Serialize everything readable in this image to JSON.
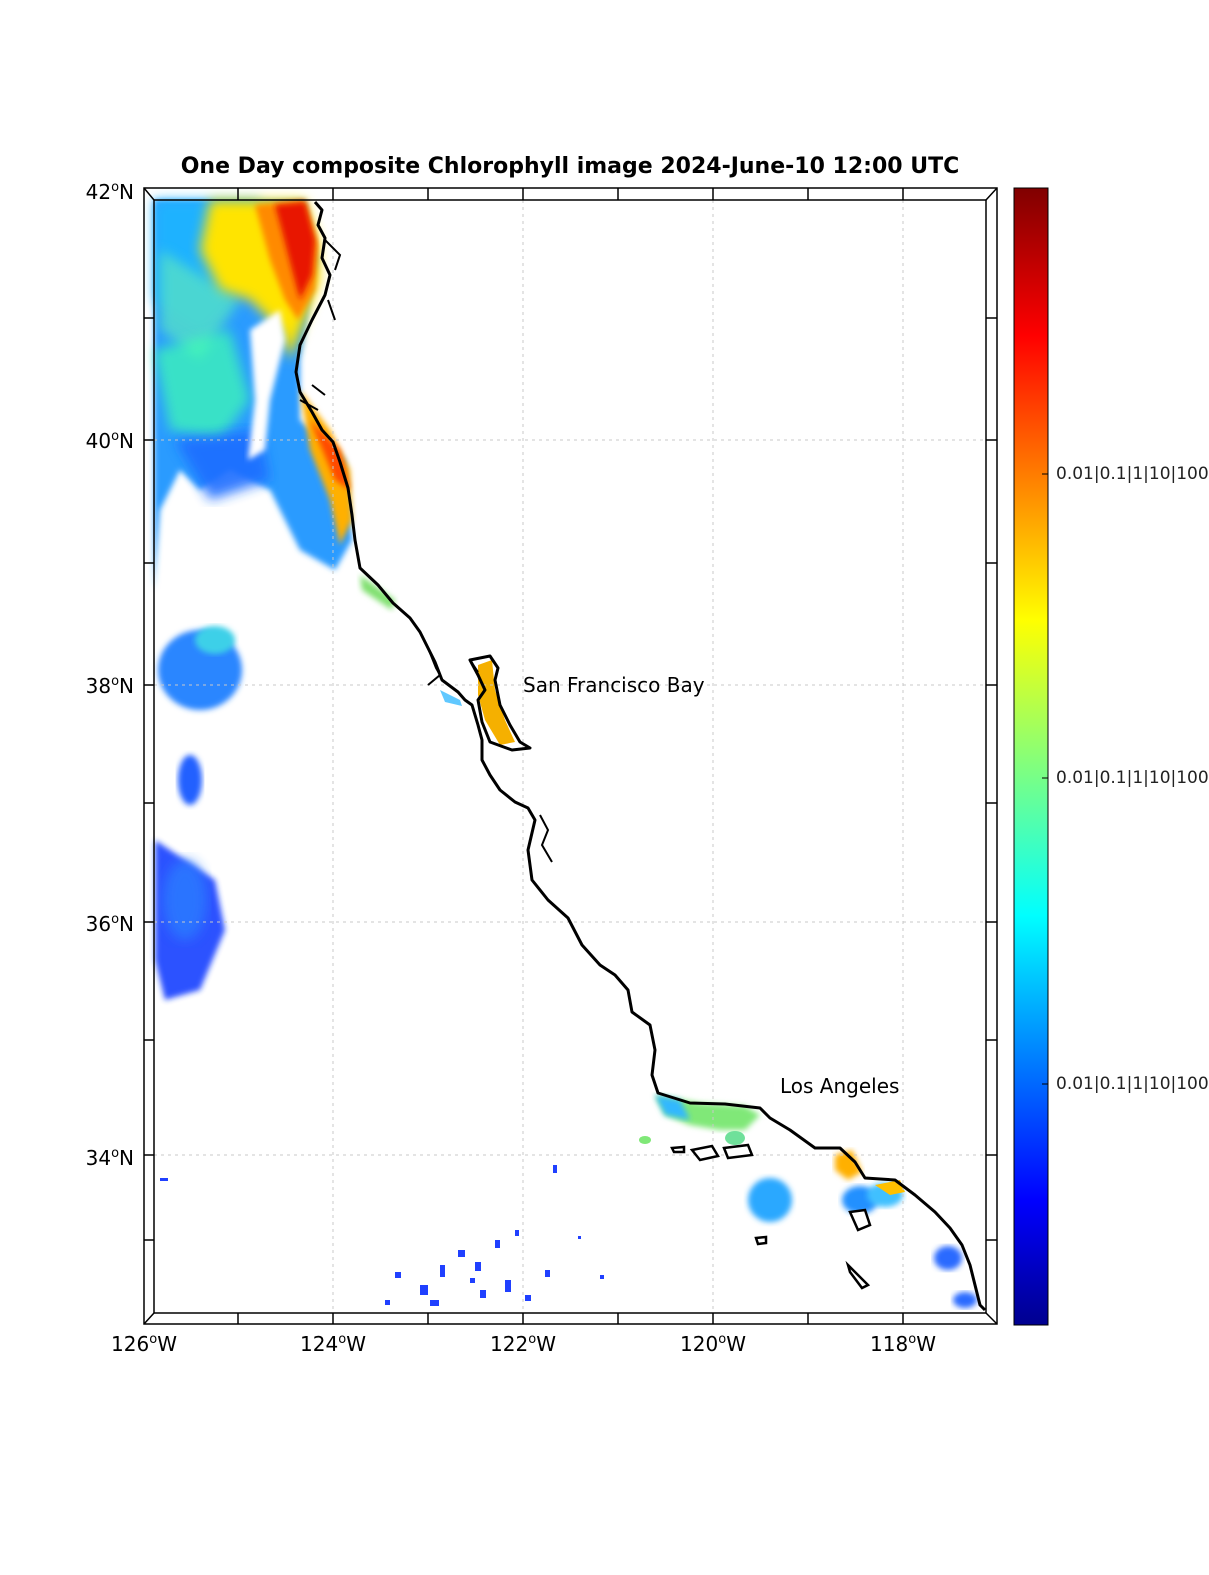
{
  "title": "One Day composite Chlorophyll image 2024-June-10 12:00 UTC",
  "map": {
    "lat_range": [
      32.6,
      42
    ],
    "lon_range": [
      -126,
      -117
    ],
    "grid": "dotted",
    "lat_ticks": [
      {
        "deg": "42",
        "hem": "N"
      },
      {
        "deg": "40",
        "hem": "N"
      },
      {
        "deg": "38",
        "hem": "N"
      },
      {
        "deg": "36",
        "hem": "N"
      },
      {
        "deg": "34",
        "hem": "N"
      }
    ],
    "lon_ticks": [
      {
        "deg": "126",
        "hem": "W"
      },
      {
        "deg": "124",
        "hem": "W"
      },
      {
        "deg": "122",
        "hem": "W"
      },
      {
        "deg": "120",
        "hem": "W"
      },
      {
        "deg": "118",
        "hem": "W"
      }
    ],
    "degree_symbol": "o",
    "places": [
      {
        "name": "San Francisco Bay"
      },
      {
        "name": "Los Angeles"
      }
    ]
  },
  "colorbar": {
    "colormap": "jet",
    "colors": [
      "#00008f",
      "#0000ff",
      "#0080ff",
      "#00ffff",
      "#80ff80",
      "#ffff00",
      "#ff8000",
      "#ff0000",
      "#800000"
    ],
    "tick_labels": [
      "0.01|0.1|1|10|100",
      "0.01|0.1|1|10|100",
      "0.01|0.1|1|10|100"
    ]
  },
  "colors": {
    "coastline": "#000000",
    "land": "#ffffff",
    "frame": "#000000",
    "grid": "#c8c8c8"
  }
}
